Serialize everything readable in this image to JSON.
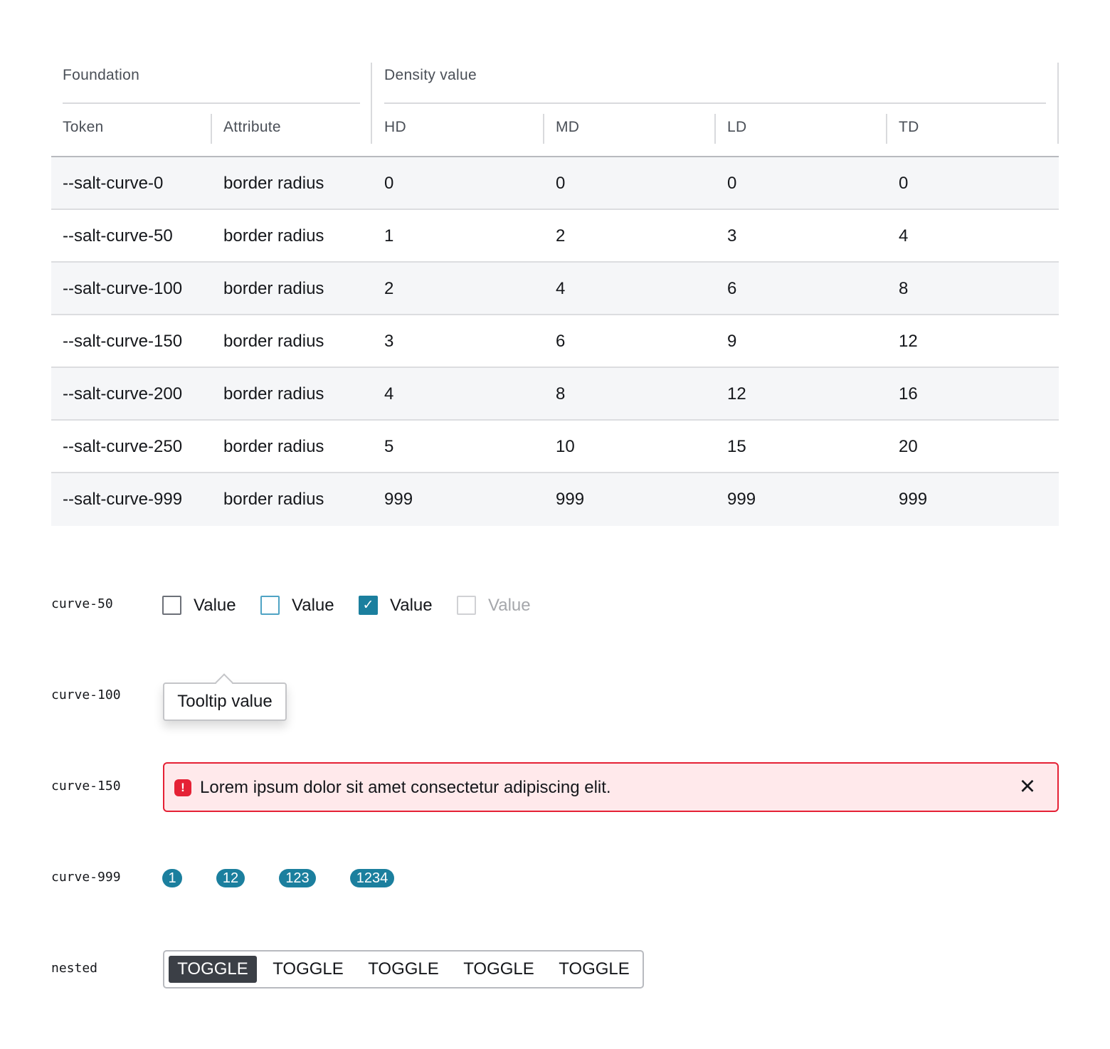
{
  "table": {
    "group_headers": {
      "foundation": "Foundation",
      "density": "Density value"
    },
    "columns": [
      "Token",
      "Attribute",
      "HD",
      "MD",
      "LD",
      "TD"
    ],
    "rows": [
      [
        "--salt-curve-0",
        "border radius",
        "0",
        "0",
        "0",
        "0"
      ],
      [
        "--salt-curve-50",
        "border radius",
        "1",
        "2",
        "3",
        "4"
      ],
      [
        "--salt-curve-100",
        "border radius",
        "2",
        "4",
        "6",
        "8"
      ],
      [
        "--salt-curve-150",
        "border radius",
        "3",
        "6",
        "9",
        "12"
      ],
      [
        "--salt-curve-200",
        "border radius",
        "4",
        "8",
        "12",
        "16"
      ],
      [
        "--salt-curve-250",
        "border radius",
        "5",
        "10",
        "15",
        "20"
      ],
      [
        "--salt-curve-999",
        "border radius",
        "999",
        "999",
        "999",
        "999"
      ]
    ]
  },
  "examples": {
    "curve50": {
      "label": "curve-50",
      "checkboxes": [
        {
          "label": "Value",
          "state": "unchecked"
        },
        {
          "label": "Value",
          "state": "hover"
        },
        {
          "label": "Value",
          "state": "checked"
        },
        {
          "label": "Value",
          "state": "disabled"
        }
      ]
    },
    "curve100": {
      "label": "curve-100",
      "tooltip": "Tooltip value"
    },
    "curve150": {
      "label": "curve-150",
      "alert": "Lorem ipsum dolor sit amet consectetur adipiscing elit.",
      "close": "×"
    },
    "curve999": {
      "label": "curve-999",
      "badges": [
        "1",
        "12",
        "123",
        "1234"
      ]
    },
    "nested": {
      "label": "nested",
      "toggles": [
        "TOGGLE",
        "TOGGLE",
        "TOGGLE",
        "TOGGLE",
        "TOGGLE"
      ],
      "selected_index": 0
    }
  },
  "colors": {
    "accent": "#1b7f9e",
    "error": "#e52135",
    "error_bg": "#ffe9eb",
    "selected_toggle": "#3b3f46"
  }
}
